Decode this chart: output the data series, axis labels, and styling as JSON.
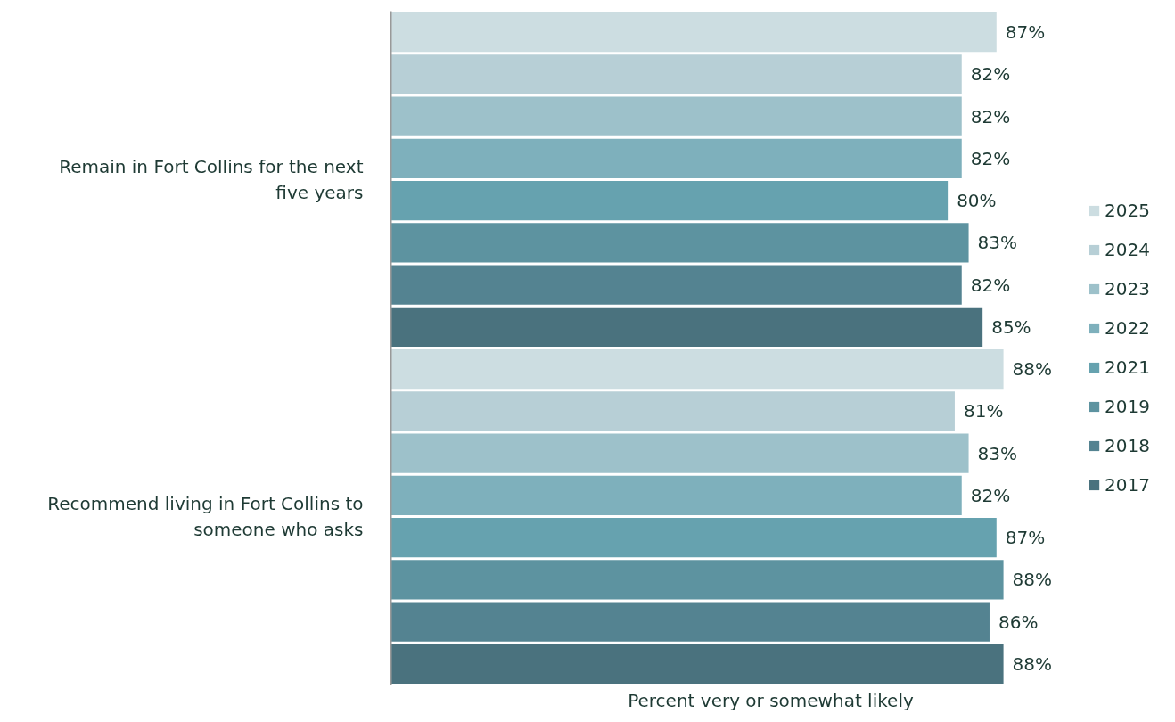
{
  "chart_data": {
    "type": "bar",
    "orientation": "horizontal",
    "xlabel": "Percent very or somewhat likely",
    "categories": [
      "Remain in Fort Collins for the next five years",
      "Recommend living in Fort Collins to someone who asks"
    ],
    "series": [
      {
        "name": "2025",
        "color": "#ccdde1",
        "values": [
          87,
          88
        ],
        "value_labels": [
          "87%",
          "88%"
        ]
      },
      {
        "name": "2024",
        "color": "#b7cfd6",
        "values": [
          82,
          81
        ],
        "value_labels": [
          "82%",
          "81%"
        ]
      },
      {
        "name": "2023",
        "color": "#9dc1ca",
        "values": [
          82,
          83
        ],
        "value_labels": [
          "82%",
          "83%"
        ]
      },
      {
        "name": "2022",
        "color": "#7eb0bc",
        "values": [
          82,
          82
        ],
        "value_labels": [
          "82%",
          "82%"
        ]
      },
      {
        "name": "2021",
        "color": "#66a2af",
        "values": [
          80,
          87
        ],
        "value_labels": [
          "80%",
          "87%"
        ]
      },
      {
        "name": "2019",
        "color": "#5d93a0",
        "values": [
          83,
          88
        ],
        "value_labels": [
          "83%",
          "88%"
        ]
      },
      {
        "name": "2018",
        "color": "#548391",
        "values": [
          82,
          86
        ],
        "value_labels": [
          "82%",
          "86%"
        ]
      },
      {
        "name": "2017",
        "color": "#4a727e",
        "values": [
          85,
          88
        ],
        "value_labels": [
          "85%",
          "88%"
        ]
      }
    ],
    "legend": "right",
    "grid": false,
    "tick_labels": "y"
  }
}
